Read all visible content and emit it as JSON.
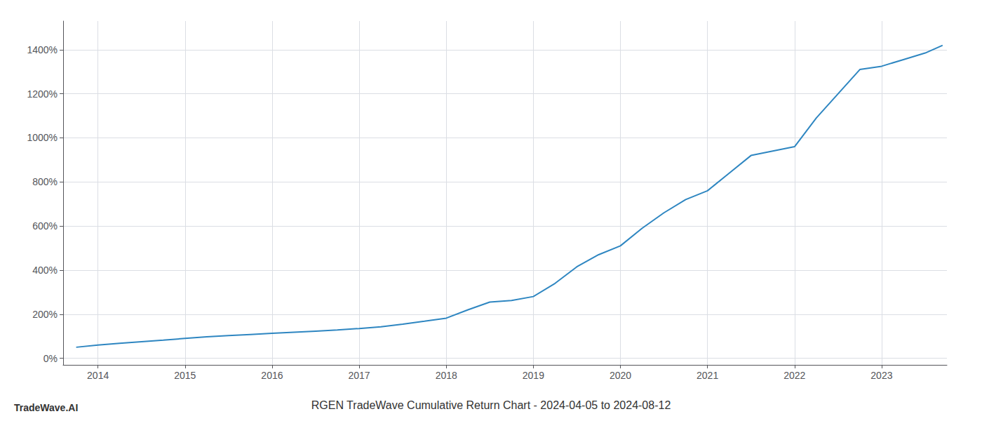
{
  "chart_data": {
    "type": "line",
    "title": "RGEN TradeWave Cumulative Return Chart - 2024-04-05 to 2024-08-12",
    "annotations": [
      "TradeWave.AI"
    ],
    "x": [
      2013.75,
      2014.0,
      2014.25,
      2014.5,
      2014.75,
      2015.0,
      2015.25,
      2015.5,
      2015.75,
      2016.0,
      2016.25,
      2016.5,
      2016.75,
      2017.0,
      2017.25,
      2017.5,
      2017.75,
      2018.0,
      2018.25,
      2018.5,
      2018.75,
      2019.0,
      2019.25,
      2019.5,
      2019.75,
      2020.0,
      2020.25,
      2020.5,
      2020.75,
      2021.0,
      2021.25,
      2021.5,
      2021.75,
      2022.0,
      2022.25,
      2022.5,
      2022.75,
      2023.0,
      2023.25,
      2023.5,
      2023.7
    ],
    "values": [
      50,
      60,
      68,
      75,
      82,
      90,
      97,
      103,
      108,
      113,
      118,
      123,
      128,
      135,
      143,
      155,
      168,
      182,
      220,
      255,
      262,
      280,
      340,
      415,
      470,
      510,
      590,
      660,
      720,
      760,
      840,
      920,
      940,
      960,
      1090,
      1200,
      1310,
      1325,
      1355,
      1385,
      1420
    ],
    "color": "#2e86c1",
    "xlim": [
      2013.6,
      2023.75
    ],
    "xticks": [
      2014,
      2015,
      2016,
      2017,
      2018,
      2019,
      2020,
      2021,
      2022,
      2023
    ],
    "ylim": [
      -30,
      1530
    ],
    "yticks": [
      {
        "value": 0,
        "label": "0%"
      },
      {
        "value": 200,
        "label": "200%"
      },
      {
        "value": 400,
        "label": "400%"
      },
      {
        "value": 600,
        "label": "600%"
      },
      {
        "value": 800,
        "label": "800%"
      },
      {
        "value": 1000,
        "label": "1000%"
      },
      {
        "value": 1200,
        "label": "1200%"
      },
      {
        "value": 1400,
        "label": "1400%"
      }
    ],
    "grid": true
  }
}
